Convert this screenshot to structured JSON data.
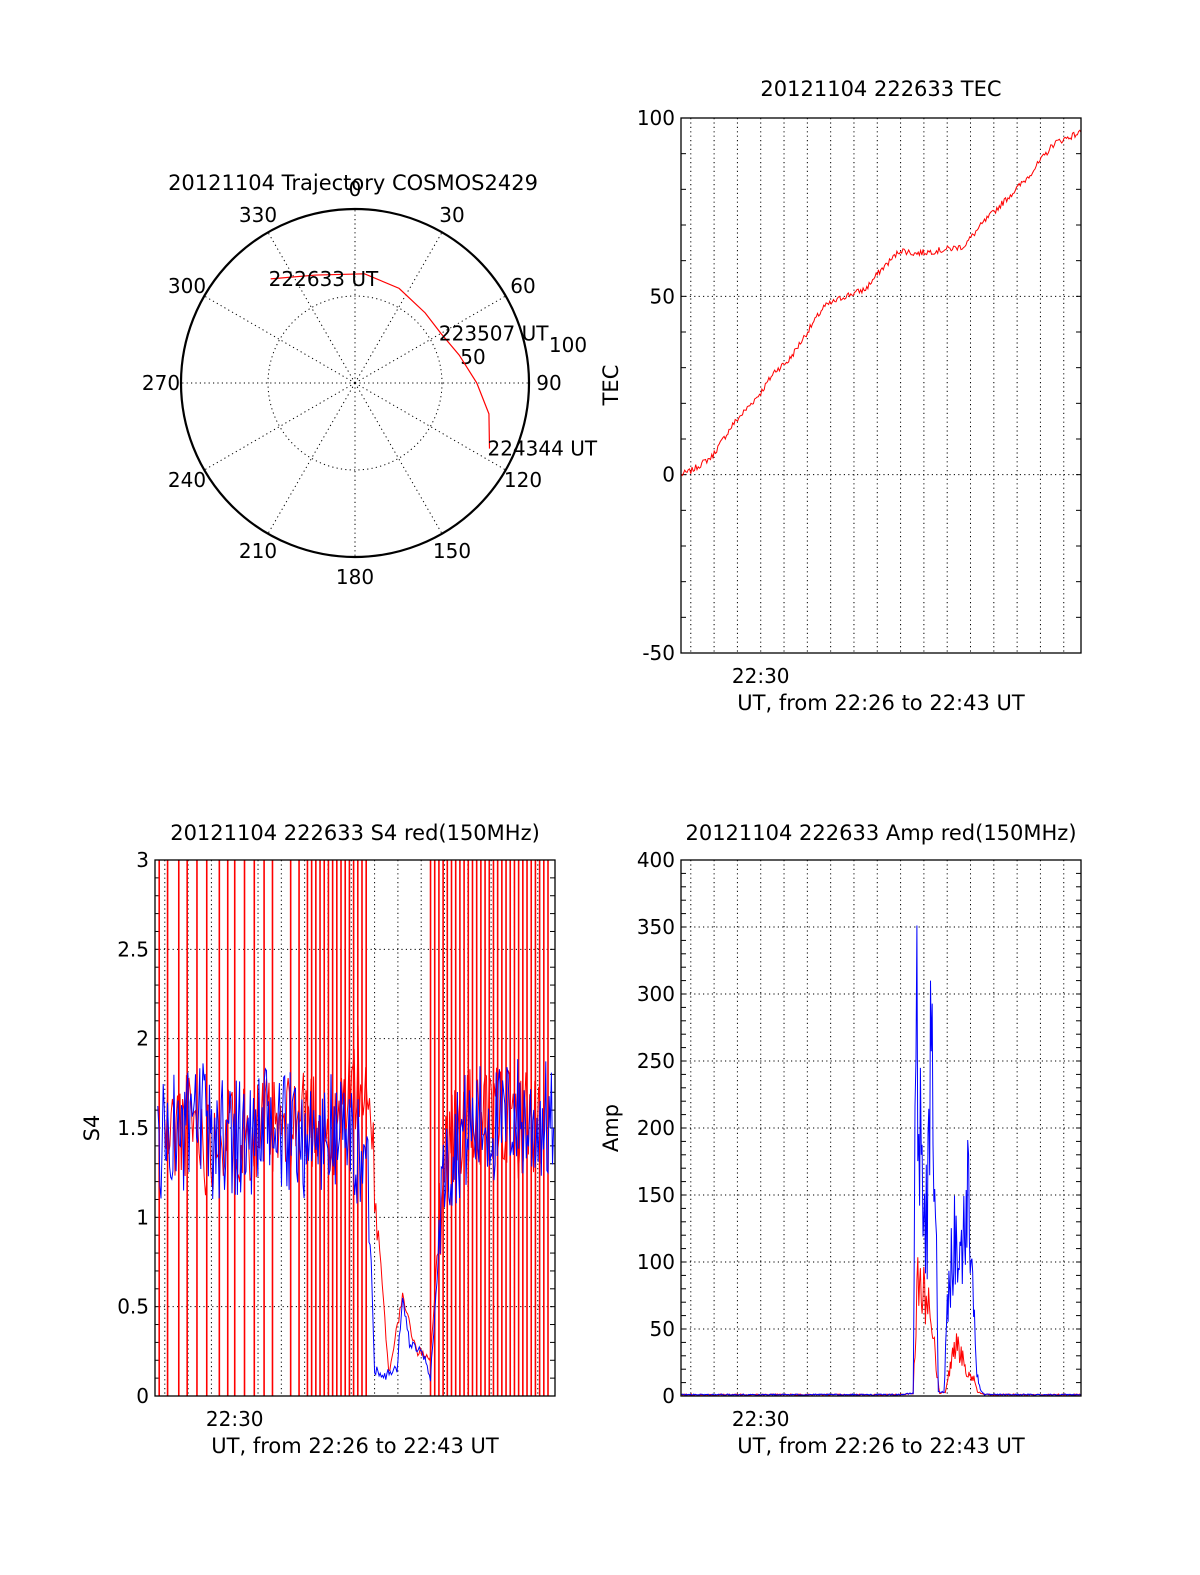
{
  "colors": {
    "red": "#ff0000",
    "blue": "#0000ff",
    "ink": "#000000"
  },
  "chart_data": [
    {
      "id": "trajectory",
      "type": "polar",
      "title": "20121104 Trajectory COSMOS2429",
      "angle_labels": [
        "0",
        "30",
        "60",
        "90",
        "120",
        "150",
        "180",
        "210",
        "240",
        "270",
        "300",
        "330"
      ],
      "radius_labels": [
        "50",
        "100"
      ],
      "series": [
        {
          "color": "red",
          "points": [
            {
              "az": 321,
              "rho": 77
            },
            {
              "az": 340,
              "rho": 66
            },
            {
              "az": 5,
              "rho": 63
            },
            {
              "az": 25,
              "rho": 60
            },
            {
              "az": 45,
              "rho": 57
            },
            {
              "az": 60,
              "rho": 57
            },
            {
              "az": 75,
              "rho": 62
            },
            {
              "az": 90,
              "rho": 70
            },
            {
              "az": 103,
              "rho": 79
            },
            {
              "az": 116,
              "rho": 86
            }
          ]
        }
      ],
      "annotations": [
        {
          "text": "222633 UT",
          "az": 321,
          "rho": 77
        },
        {
          "text": "223507 UT",
          "az": 60,
          "rho": 57
        },
        {
          "text": "224344 UT",
          "az": 116,
          "rho": 86
        }
      ]
    },
    {
      "id": "tec",
      "type": "line",
      "title": "20121104 222633 TEC",
      "ylabel": "TEC",
      "xlabel": "UT, from 22:26 to 22:43 UT",
      "xlim": [
        22.443,
        22.729
      ],
      "ylim": [
        -50,
        100
      ],
      "y_ticks": [
        -50,
        0,
        50,
        100
      ],
      "x_tick_labels": [
        {
          "x": 22.5,
          "label": "22:30"
        }
      ],
      "grid": true,
      "series": [
        {
          "color": "red",
          "x": [
            22.443,
            22.45,
            22.465,
            22.48,
            22.5,
            22.51,
            22.52,
            22.53,
            22.545,
            22.56,
            22.575,
            22.585,
            22.6,
            22.61,
            22.63,
            22.645,
            22.66,
            22.675,
            22.69,
            22.71,
            22.729
          ],
          "y": [
            0,
            1,
            5,
            14,
            23,
            29,
            32,
            38,
            47,
            50,
            52,
            57,
            63,
            62,
            63,
            64,
            71,
            77,
            83,
            93,
            96
          ]
        }
      ]
    },
    {
      "id": "s4",
      "type": "line",
      "title": "20121104 222633 S4 red(150MHz)",
      "ylabel": "S4",
      "xlabel": "UT, from 22:26 to 22:43 UT",
      "xlim": [
        22.443,
        22.729
      ],
      "ylim": [
        0,
        3
      ],
      "y_ticks": [
        0,
        0.5,
        1,
        1.5,
        2,
        2.5,
        3
      ],
      "x_tick_labels": [
        {
          "x": 22.5,
          "label": "22:30"
        }
      ],
      "grid": true,
      "series": [
        {
          "color": "red",
          "x": [
            22.45,
            22.46,
            22.47,
            22.48,
            22.49,
            22.5,
            22.51,
            22.52,
            22.53,
            22.54,
            22.55,
            22.56,
            22.57,
            22.58,
            22.59,
            22.6,
            22.61,
            22.62,
            22.63,
            22.64,
            22.65,
            22.66,
            22.67,
            22.68,
            22.69,
            22.7,
            22.71,
            22.72
          ],
          "y": [
            1.45,
            1.5,
            1.55,
            1.4,
            1.5,
            1.45,
            1.5,
            1.5,
            1.45,
            1.5,
            1.6,
            1.55,
            1.4,
            1.7,
            1.8,
            1.25,
            0.13,
            0.55,
            0.25,
            0.22,
            1.4,
            1.5,
            1.55,
            1.5,
            1.6,
            1.5,
            1.55,
            1.5
          ],
          "spikes_x": [
            22.446,
            22.452,
            22.46,
            22.466,
            22.473,
            22.48,
            22.489,
            22.495,
            22.5,
            22.507,
            22.514,
            22.521,
            22.527,
            22.54,
            22.546,
            22.552,
            22.555,
            22.558,
            22.561,
            22.564,
            22.567,
            22.57,
            22.573,
            22.576,
            22.579,
            22.582,
            22.585,
            22.588,
            22.591,
            22.594,
            22.64,
            22.643,
            22.646,
            22.649,
            22.652,
            22.655,
            22.658,
            22.661,
            22.664,
            22.667,
            22.67,
            22.673,
            22.676,
            22.679,
            22.682,
            22.685,
            22.688,
            22.691,
            22.694,
            22.697,
            22.7,
            22.703,
            22.706,
            22.709,
            22.712,
            22.715,
            22.718,
            22.721,
            22.724
          ]
        },
        {
          "color": "blue",
          "x": [
            22.445,
            22.455,
            22.465,
            22.475,
            22.485,
            22.495,
            22.505,
            22.515,
            22.525,
            22.535,
            22.545,
            22.555,
            22.565,
            22.575,
            22.585,
            22.593,
            22.596,
            22.6,
            22.608,
            22.612,
            22.616,
            22.62,
            22.625,
            22.632,
            22.636,
            22.64,
            22.65,
            22.66,
            22.67,
            22.68,
            22.69,
            22.7,
            22.71,
            22.72,
            22.728
          ],
          "y": [
            1.4,
            1.5,
            1.45,
            1.55,
            1.4,
            1.5,
            1.45,
            1.45,
            1.5,
            1.45,
            1.5,
            1.4,
            1.45,
            1.5,
            1.4,
            1.3,
            1.15,
            0.15,
            0.12,
            0.13,
            0.15,
            0.55,
            0.3,
            0.25,
            0.2,
            0.1,
            1.3,
            1.45,
            1.5,
            1.55,
            1.5,
            1.6,
            1.5,
            1.55,
            1.5
          ]
        }
      ]
    },
    {
      "id": "amp",
      "type": "line",
      "title": "20121104 222633 Amp red(150MHz)",
      "ylabel": "Amp",
      "xlabel": "UT, from 22:26 to 22:43 UT",
      "xlim": [
        22.443,
        22.729
      ],
      "ylim": [
        0,
        400
      ],
      "y_ticks": [
        0,
        50,
        100,
        150,
        200,
        250,
        300,
        350,
        400
      ],
      "x_tick_labels": [
        {
          "x": 22.5,
          "label": "22:30"
        }
      ],
      "grid": true,
      "series": [
        {
          "color": "red",
          "x": [
            22.443,
            22.5,
            22.6,
            22.609,
            22.611,
            22.613,
            22.616,
            22.62,
            22.623,
            22.626,
            22.628,
            22.632,
            22.635,
            22.64,
            22.645,
            22.65,
            22.653,
            22.655,
            22.66,
            22.729
          ],
          "y": [
            1,
            1,
            1,
            2,
            60,
            90,
            75,
            70,
            60,
            15,
            2,
            3,
            20,
            40,
            25,
            15,
            12,
            3,
            1,
            1
          ]
        },
        {
          "color": "blue",
          "x": [
            22.443,
            22.5,
            22.6,
            22.609,
            22.611,
            22.613,
            22.616,
            22.619,
            22.622,
            22.625,
            22.627,
            22.631,
            22.634,
            22.638,
            22.643,
            22.648,
            22.651,
            22.654,
            22.657,
            22.66,
            22.729
          ],
          "y": [
            1,
            1,
            1,
            2,
            300,
            200,
            165,
            120,
            260,
            140,
            3,
            3,
            80,
            120,
            100,
            150,
            120,
            20,
            5,
            1,
            1
          ]
        }
      ]
    }
  ]
}
